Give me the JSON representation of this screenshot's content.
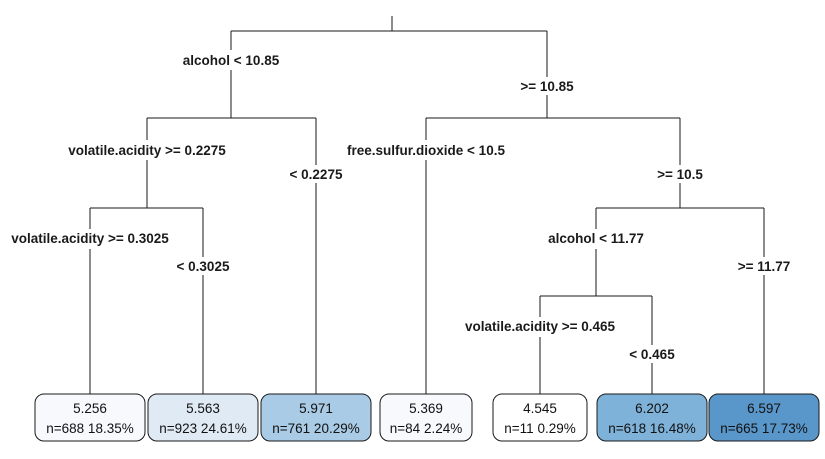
{
  "tree": {
    "splits": {
      "alcohol_lt": "alcohol < 10.85",
      "alcohol_ge": ">= 10.85",
      "va_ge_02275": "volatile.acidity >= 0.2275",
      "va_lt_02275": "< 0.2275",
      "va_ge_03025": "volatile.acidity >= 0.3025",
      "va_lt_03025": "< 0.3025",
      "fsd_lt": "free.sulfur.dioxide < 10.5",
      "fsd_ge": ">= 10.5",
      "alcohol2_lt": "alcohol < 11.77",
      "alcohol2_ge": ">= 11.77",
      "va_ge_0465": "volatile.acidity >= 0.465",
      "va_lt_0465": "< 0.465"
    },
    "leaves": [
      {
        "value": "5.256",
        "count": "n=688  18.35%",
        "color": "#f7f9fd"
      },
      {
        "value": "5.563",
        "count": "n=923  24.61%",
        "color": "#dfeaf5"
      },
      {
        "value": "5.971",
        "count": "n=761  20.29%",
        "color": "#a9cbe5"
      },
      {
        "value": "5.369",
        "count": "n=84  2.24%",
        "color": "#f7f9fd"
      },
      {
        "value": "4.545",
        "count": "n=11  0.29%",
        "color": "#ffffff"
      },
      {
        "value": "6.202",
        "count": "n=618  16.48%",
        "color": "#7fb2d9"
      },
      {
        "value": "6.597",
        "count": "n=665  17.73%",
        "color": "#5996c9"
      }
    ]
  }
}
